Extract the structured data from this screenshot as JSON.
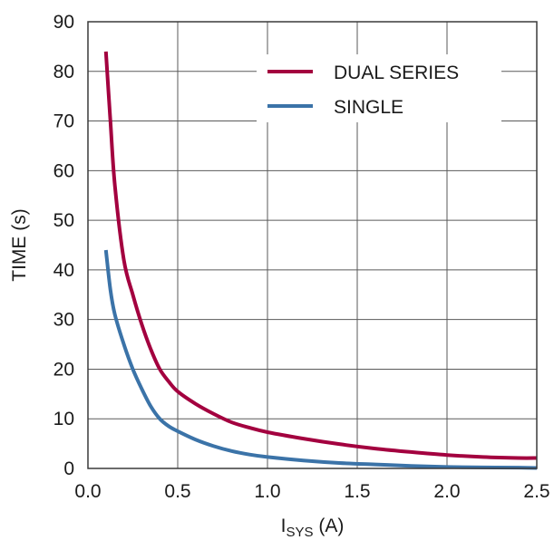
{
  "chart_data": {
    "type": "line",
    "title": "",
    "xlabel_main": "I",
    "xlabel_sub": "SYS",
    "xlabel_unit": " (A)",
    "ylabel": "TIME (s)",
    "xlim": [
      0.0,
      2.5
    ],
    "ylim": [
      0,
      90
    ],
    "xticks": [
      0.0,
      0.5,
      1.0,
      1.5,
      2.0,
      2.5
    ],
    "xtick_labels": [
      "0.0",
      "0.5",
      "1.0",
      "1.5",
      "2.0",
      "2.5"
    ],
    "yticks": [
      0,
      10,
      20,
      30,
      40,
      50,
      60,
      70,
      80,
      90
    ],
    "ytick_labels": [
      "0",
      "10",
      "20",
      "30",
      "40",
      "50",
      "60",
      "70",
      "80",
      "90"
    ],
    "grid": true,
    "legend_position": "top-right",
    "series": [
      {
        "name": "DUAL SERIES",
        "color": "#a3003f",
        "x": [
          0.1,
          0.125,
          0.15,
          0.2,
          0.25,
          0.3,
          0.35,
          0.4,
          0.45,
          0.5,
          0.6,
          0.7,
          0.8,
          0.9,
          1.0,
          1.2,
          1.4,
          1.6,
          1.8,
          2.0,
          2.2,
          2.4,
          2.5
        ],
        "y": [
          84,
          70,
          57,
          42,
          35,
          29,
          24,
          20,
          17.5,
          15.5,
          13,
          11,
          9.3,
          8.2,
          7.3,
          6.0,
          4.9,
          4.0,
          3.3,
          2.7,
          2.3,
          2.1,
          2.1
        ]
      },
      {
        "name": "SINGLE",
        "color": "#3b73a8",
        "x": [
          0.1,
          0.125,
          0.15,
          0.2,
          0.25,
          0.3,
          0.35,
          0.4,
          0.45,
          0.5,
          0.6,
          0.7,
          0.8,
          0.9,
          1.0,
          1.2,
          1.4,
          1.6,
          1.8,
          2.0,
          2.2,
          2.4,
          2.5
        ],
        "y": [
          44,
          36,
          31,
          25,
          20,
          16,
          12.5,
          10,
          8.5,
          7.5,
          5.8,
          4.5,
          3.5,
          2.8,
          2.3,
          1.6,
          1.1,
          0.8,
          0.5,
          0.3,
          0.2,
          0.15,
          0.1
        ]
      }
    ]
  }
}
